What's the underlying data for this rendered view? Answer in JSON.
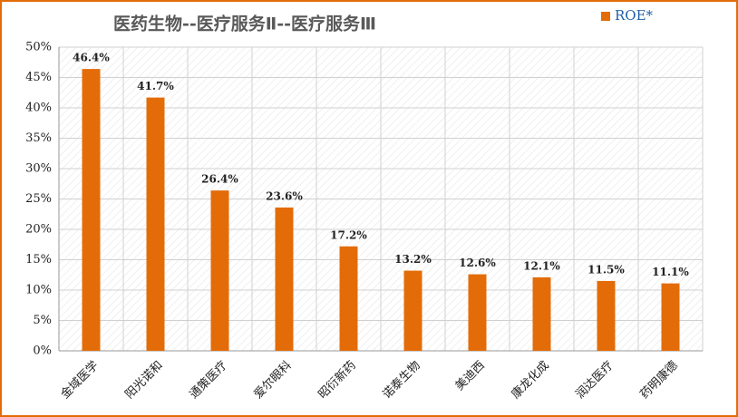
{
  "chart_data": {
    "type": "bar",
    "title": "医药生物--医疗服务Ⅱ--医疗服务Ⅲ",
    "categories": [
      "金域医学",
      "阳光诺和",
      "通策医疗",
      "爱尔眼科",
      "昭衍新药",
      "诺泰生物",
      "美迪西",
      "康龙化成",
      "润达医疗",
      "药明康德"
    ],
    "series": [
      {
        "name": "ROE*",
        "color": "#e36c09",
        "values": [
          46.4,
          41.7,
          26.4,
          23.6,
          17.2,
          13.2,
          12.6,
          12.1,
          11.5,
          11.1
        ],
        "value_labels": [
          "46.4%",
          "41.7%",
          "26.4%",
          "23.6%",
          "17.2%",
          "13.2%",
          "12.6%",
          "12.1%",
          "11.5%",
          "11.1%"
        ]
      }
    ],
    "ylim": [
      0,
      50
    ],
    "yticks": [
      {
        "value": 0,
        "label": "0%"
      },
      {
        "value": 5,
        "label": "5%"
      },
      {
        "value": 10,
        "label": "10%"
      },
      {
        "value": 15,
        "label": "15%"
      },
      {
        "value": 20,
        "label": "20%"
      },
      {
        "value": 25,
        "label": "25%"
      },
      {
        "value": 30,
        "label": "30%"
      },
      {
        "value": 35,
        "label": "35%"
      },
      {
        "value": 40,
        "label": "40%"
      },
      {
        "value": 45,
        "label": "45%"
      },
      {
        "value": 50,
        "label": "50%"
      }
    ],
    "grid": true,
    "legend": "top-right"
  }
}
